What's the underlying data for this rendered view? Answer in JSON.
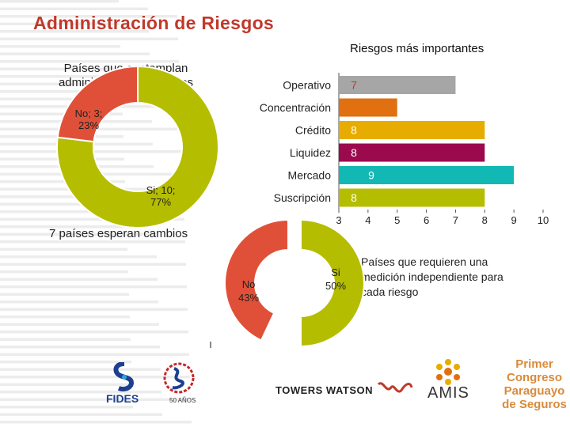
{
  "title": "Administración de Riesgos",
  "bar_title": "Riesgos más importantes",
  "donut_title": "Países que contemplan administración de riesgos",
  "changes_text": "7 países esperan cambios",
  "half_note": "Países que requieren una medición independiente para cada riesgo",
  "logos": {
    "fides": "FIDES",
    "sello": "50 AÑOS",
    "towers_watson": "TOWERS WATSON",
    "amis": "AMIS",
    "congreso": "Primer Congreso Paraguayo de Seguros"
  },
  "colors": {
    "title": "#c0392b",
    "red": "#e05038",
    "olive": "#b5bd00",
    "gray": "#a6a6a6",
    "orange": "#e07010",
    "yellow": "#e6ac00",
    "maroon": "#9c0a4e",
    "teal": "#12b8b3"
  },
  "chart_data": [
    {
      "type": "pie",
      "title": "Países que contemplan administración de riesgos",
      "categories": [
        "No",
        "Si"
      ],
      "values": [
        3,
        10
      ],
      "labels": [
        "No; 3; 23%",
        "Si; 10; 77%"
      ],
      "colors": [
        "#e05038",
        "#b5bd00"
      ]
    },
    {
      "type": "bar",
      "orientation": "horizontal",
      "title": "Riesgos más importantes",
      "categories": [
        "Operativo",
        "Concentración",
        "Crédito",
        "Liquidez",
        "Mercado",
        "Suscripción"
      ],
      "values": [
        7,
        5,
        8,
        8,
        9,
        8
      ],
      "data_labels": [
        "7",
        "",
        "8",
        "8",
        "9",
        "8"
      ],
      "colors": [
        "#a6a6a6",
        "#e07010",
        "#e6ac00",
        "#9c0a4e",
        "#12b8b3",
        "#b5bd00"
      ],
      "xlim": [
        3,
        10
      ],
      "xticks": [
        "3",
        "4",
        "5",
        "6",
        "7",
        "8",
        "9",
        "10"
      ]
    },
    {
      "type": "pie",
      "title": "Países que requieren una medición independiente para cada riesgo",
      "categories": [
        "No",
        "Si"
      ],
      "values": [
        43,
        50
      ],
      "labels": [
        "No 43%",
        "Si 50%"
      ],
      "colors": [
        "#e05038",
        "#b5bd00"
      ]
    }
  ]
}
